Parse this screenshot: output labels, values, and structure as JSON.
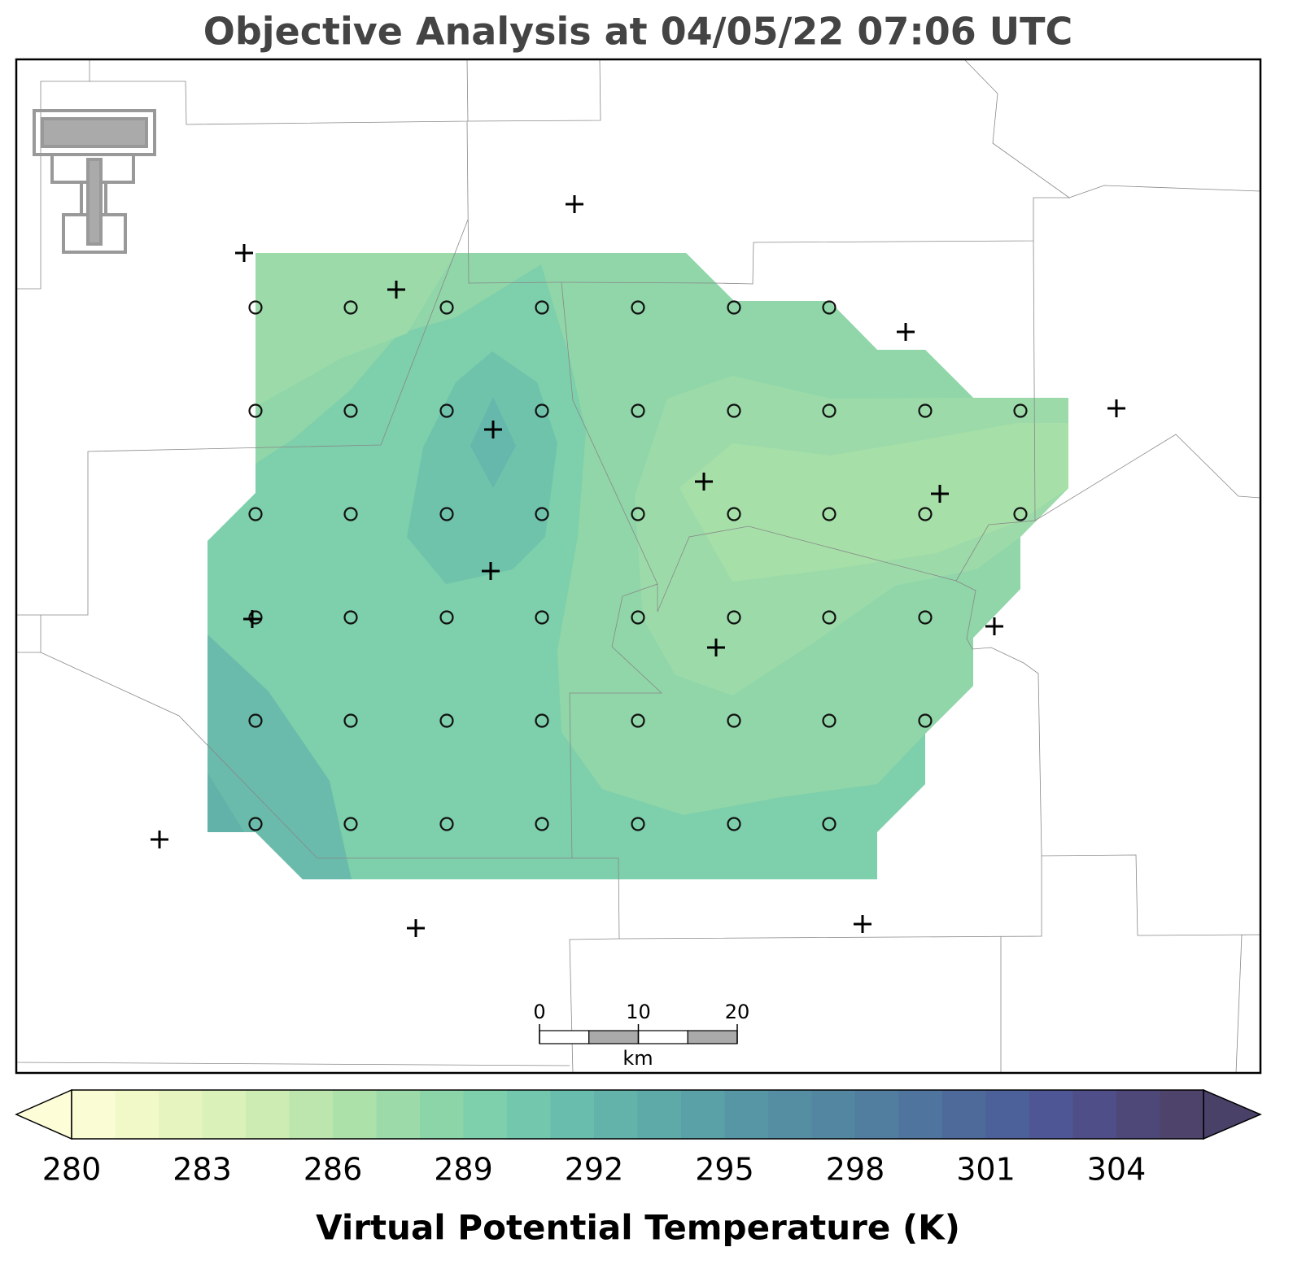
{
  "title": "Objective Analysis at 04/05/22 07:06 UTC",
  "colorbar": {
    "label": "Virtual Potential Temperature (K)",
    "levels": [
      280,
      281,
      282,
      283,
      284,
      285,
      286,
      287,
      288,
      289,
      290,
      291,
      292,
      293,
      294,
      295,
      296,
      297,
      298,
      299,
      300,
      301,
      302,
      303,
      304,
      305,
      306
    ],
    "colors": [
      "#fafcd3",
      "#f1f9c9",
      "#e6f5c0",
      "#daf1b9",
      "#cdecb3",
      "#bde6ae",
      "#ade1aa",
      "#9cdba9",
      "#8cd5a9",
      "#7ecfab",
      "#72c7ac",
      "#69bdac",
      "#63b3ab",
      "#5eaaa9",
      "#5aa0a7",
      "#5797a5",
      "#558ea3",
      "#5386a1",
      "#517d9f",
      "#4f749d",
      "#4d6a9b",
      "#4c6099",
      "#4e5695",
      "#4f4e88",
      "#4e4879",
      "#4e446b"
    ],
    "extend_colors": [
      "#fdfdd8",
      "#4a4168"
    ],
    "ticks": [
      280,
      283,
      286,
      289,
      292,
      295,
      298,
      301,
      304
    ]
  },
  "scale_bar": {
    "ticks": [
      0,
      10,
      20
    ],
    "unit": "km"
  }
}
